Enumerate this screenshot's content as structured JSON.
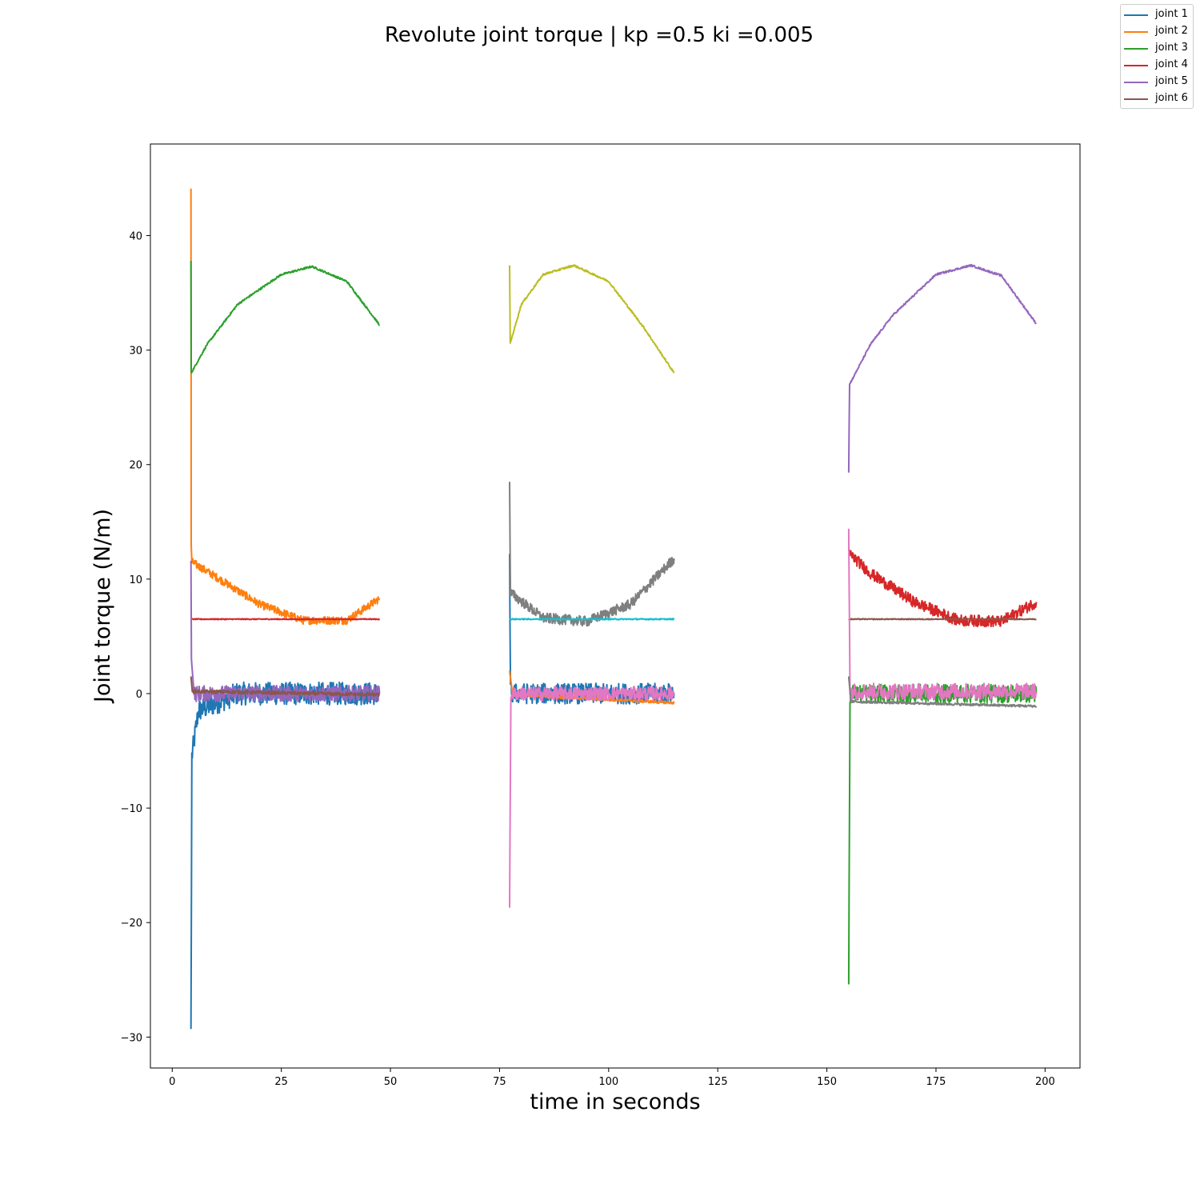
{
  "chart_data": {
    "type": "line",
    "title": "Revolute joint torque | kp =0.5 ki =0.005",
    "xlabel": "time in seconds",
    "ylabel": "Joint torque (N/m)",
    "xlim": [
      -5,
      208
    ],
    "ylim": [
      -32.7,
      48.0
    ],
    "xticks": [
      0,
      25,
      50,
      75,
      100,
      125,
      150,
      175,
      200
    ],
    "xtick_labels": [
      "0",
      "25",
      "50",
      "75",
      "100",
      "125",
      "150",
      "175",
      "200"
    ],
    "yticks": [
      -30,
      -20,
      -10,
      0,
      10,
      20,
      30,
      40
    ],
    "ytick_labels": [
      "−30",
      "−20",
      "−10",
      "0",
      "10",
      "20",
      "30",
      "40"
    ],
    "grid": false,
    "legend_position": "top-right (outside axes)",
    "legend": [
      {
        "label": "joint 1",
        "color": "#1f77b4"
      },
      {
        "label": "joint 2",
        "color": "#ff7f0e"
      },
      {
        "label": "joint 3",
        "color": "#2ca02c"
      },
      {
        "label": "joint 4",
        "color": "#d62728"
      },
      {
        "label": "joint 5",
        "color": "#9467bd"
      },
      {
        "label": "joint 6",
        "color": "#8c564b"
      }
    ],
    "series": [
      {
        "segment": 1,
        "color": "#1f77b4",
        "noise": 1.0,
        "points": [
          [
            4.3,
            -29.3
          ],
          [
            4.5,
            -5.5
          ],
          [
            6,
            -1.5
          ],
          [
            15,
            0
          ],
          [
            47.5,
            0
          ]
        ]
      },
      {
        "segment": 1,
        "color": "#ff7f0e",
        "noise": 0.35,
        "points": [
          [
            4.3,
            44.1
          ],
          [
            4.35,
            13
          ],
          [
            4.5,
            11.5
          ],
          [
            10,
            10.2
          ],
          [
            20,
            7.8
          ],
          [
            30,
            6.4
          ],
          [
            40,
            6.4
          ],
          [
            47.5,
            8.3
          ]
        ]
      },
      {
        "segment": 1,
        "color": "#2ca02c",
        "noise": 0.08,
        "points": [
          [
            4.3,
            37.8
          ],
          [
            4.35,
            28.0
          ],
          [
            8,
            30.5
          ],
          [
            15,
            34.0
          ],
          [
            25,
            36.6
          ],
          [
            32,
            37.3
          ],
          [
            40,
            36.0
          ],
          [
            47.5,
            32.2
          ]
        ]
      },
      {
        "segment": 1,
        "color": "#d62728",
        "noise": 0.04,
        "points": [
          [
            4.3,
            6.5
          ],
          [
            47.5,
            6.5
          ]
        ]
      },
      {
        "segment": 1,
        "color": "#9467bd",
        "noise": 0.7,
        "points": [
          [
            4.3,
            11.6
          ],
          [
            4.4,
            3.0
          ],
          [
            5,
            0
          ],
          [
            47.5,
            0
          ]
        ]
      },
      {
        "segment": 1,
        "color": "#8c564b",
        "noise": 0.15,
        "points": [
          [
            4.3,
            1.5
          ],
          [
            4.6,
            0.2
          ],
          [
            47.5,
            -0.1
          ]
        ]
      },
      {
        "segment": 2,
        "color": "#1f77b4",
        "noise": 0.9,
        "points": [
          [
            77.3,
            12.2
          ],
          [
            77.5,
            0
          ],
          [
            115,
            0
          ]
        ]
      },
      {
        "segment": 2,
        "color": "#ff7f0e",
        "noise": 0.12,
        "points": [
          [
            77.3,
            2.0
          ],
          [
            78,
            -0.1
          ],
          [
            115,
            -0.8
          ]
        ]
      },
      {
        "segment": 2,
        "color": "#7f7f7f",
        "noise": 0.45,
        "points": [
          [
            77.3,
            18.5
          ],
          [
            77.5,
            8.8
          ],
          [
            85,
            6.6
          ],
          [
            95,
            6.3
          ],
          [
            105,
            7.8
          ],
          [
            115,
            11.8
          ]
        ]
      },
      {
        "segment": 2,
        "color": "#17becf",
        "noise": 0.05,
        "points": [
          [
            77.3,
            6.5
          ],
          [
            115,
            6.5
          ]
        ]
      },
      {
        "segment": 2,
        "color": "#bcbd22",
        "noise": 0.08,
        "points": [
          [
            77.3,
            37.4
          ],
          [
            77.45,
            30.6
          ],
          [
            80,
            34.0
          ],
          [
            85,
            36.6
          ],
          [
            92,
            37.4
          ],
          [
            100,
            36.0
          ],
          [
            108,
            32.0
          ],
          [
            115,
            28.0
          ]
        ]
      },
      {
        "segment": 2,
        "color": "#e377c2",
        "noise": 0.6,
        "points": [
          [
            77.3,
            -18.7
          ],
          [
            77.6,
            0
          ],
          [
            115,
            0
          ]
        ]
      },
      {
        "segment": 3,
        "color": "#2ca02c",
        "noise": 0.8,
        "points": [
          [
            155,
            -25.4
          ],
          [
            155.3,
            0
          ],
          [
            198,
            0
          ]
        ]
      },
      {
        "segment": 3,
        "color": "#d62728",
        "noise": 0.5,
        "points": [
          [
            155,
            12.3
          ],
          [
            160,
            10.5
          ],
          [
            170,
            8.0
          ],
          [
            180,
            6.4
          ],
          [
            190,
            6.3
          ],
          [
            198,
            8.0
          ]
        ]
      },
      {
        "segment": 3,
        "color": "#9467bd",
        "noise": 0.08,
        "points": [
          [
            155,
            19.3
          ],
          [
            155.2,
            27.0
          ],
          [
            160,
            30.5
          ],
          [
            165,
            33.0
          ],
          [
            175,
            36.6
          ],
          [
            183,
            37.4
          ],
          [
            190,
            36.5
          ],
          [
            198,
            32.3
          ]
        ]
      },
      {
        "segment": 3,
        "color": "#8c564b",
        "noise": 0.04,
        "points": [
          [
            155,
            6.5
          ],
          [
            198,
            6.5
          ]
        ]
      },
      {
        "segment": 3,
        "color": "#e377c2",
        "noise": 0.7,
        "points": [
          [
            155,
            14.4
          ],
          [
            155.3,
            0.2
          ],
          [
            198,
            0.2
          ]
        ]
      },
      {
        "segment": 3,
        "color": "#7f7f7f",
        "noise": 0.1,
        "points": [
          [
            155,
            1.5
          ],
          [
            155.5,
            -0.7
          ],
          [
            198,
            -1.1
          ]
        ]
      }
    ]
  }
}
